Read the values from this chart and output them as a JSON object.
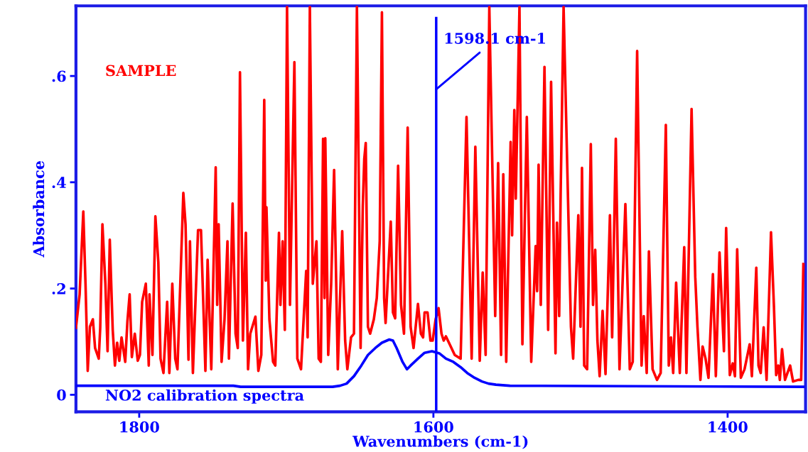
{
  "chart_data": {
    "type": "line",
    "xlabel": "Wavenumbers (cm-1)",
    "ylabel": "Absorbance",
    "xlim": [
      1843,
      1347
    ],
    "ylim": [
      -0.032,
      0.732
    ],
    "xticks": [
      1800,
      1600,
      1400
    ],
    "yticks": [
      {
        "value": 0,
        "label": "0"
      },
      {
        "value": 0.2,
        "label": ".2"
      },
      {
        "value": 0.4,
        "label": ".4"
      },
      {
        "value": 0.6,
        "label": ".6"
      }
    ],
    "grid": false,
    "legend": false,
    "marker": "none",
    "line_style": "solid",
    "ref_lines": [
      {
        "axis": "x",
        "value": 1598.1,
        "label": "1598.1 cm-1",
        "color": "#0000ff",
        "line_style": "solid"
      }
    ],
    "series": [
      {
        "name": "SAMPLE",
        "color": "#ff0000",
        "x": [
          1843,
          1840.5,
          1838,
          1836.5,
          1835,
          1833.5,
          1831.5,
          1830,
          1827.5,
          1826.5,
          1825,
          1823,
          1821.5,
          1820,
          1818,
          1816.5,
          1815,
          1813.5,
          1812,
          1809.5,
          1808,
          1806.5,
          1805,
          1803,
          1801,
          1799.5,
          1798,
          1795.5,
          1793.5,
          1793,
          1791,
          1789,
          1787,
          1785.5,
          1783.5,
          1781,
          1779.5,
          1777.5,
          1775.5,
          1774,
          1772.5,
          1770,
          1768.5,
          1766.5,
          1765.5,
          1763.5,
          1760,
          1758,
          1755,
          1753.5,
          1751,
          1748,
          1747,
          1746,
          1744,
          1742,
          1740,
          1739,
          1736.5,
          1734.5,
          1733,
          1731.5,
          1729.5,
          1727.5,
          1726,
          1724.5,
          1721,
          1719,
          1717,
          1715,
          1714,
          1713.5,
          1711.5,
          1709,
          1707.5,
          1705,
          1704,
          1702.5,
          1701,
          1699.5,
          1697.5,
          1694.5,
          1692.5,
          1690,
          1686.5,
          1685.5,
          1684,
          1682,
          1679.5,
          1678,
          1676.5,
          1675,
          1674,
          1673.5,
          1671.5,
          1669.5,
          1667.5,
          1665,
          1662,
          1660,
          1658.5,
          1656,
          1654,
          1652,
          1649.5,
          1648,
          1647,
          1646,
          1644.5,
          1643,
          1640.5,
          1638.5,
          1636.5,
          1635,
          1633.5,
          1632.5,
          1629,
          1627.5,
          1626,
          1624,
          1622,
          1620,
          1617.5,
          1615.5,
          1613.5,
          1610.5,
          1608.5,
          1607,
          1606,
          1604,
          1602,
          1600.5,
          1598.5,
          1596.5,
          1594.5,
          1593,
          1591.5,
          1585.5,
          1581.5,
          1577.5,
          1574,
          1571.5,
          1568.5,
          1566.5,
          1564.5,
          1562,
          1558,
          1556,
          1554,
          1552.5,
          1550.5,
          1547.5,
          1546.5,
          1545,
          1544,
          1541.5,
          1539.5,
          1536.5,
          1533.5,
          1530.5,
          1529.5,
          1528.5,
          1527,
          1524.5,
          1522,
          1520,
          1517,
          1516,
          1514.5,
          1513.5,
          1511.5,
          1506.5,
          1505,
          1501.5,
          1500,
          1499,
          1497.5,
          1495.5,
          1493,
          1491.5,
          1490,
          1488.5,
          1487,
          1485,
          1483,
          1480,
          1478.5,
          1476,
          1473.5,
          1469.5,
          1466.5,
          1464.5,
          1461.5,
          1458.5,
          1457,
          1455,
          1453.5,
          1451,
          1448,
          1445.5,
          1442,
          1440,
          1438.5,
          1437,
          1435,
          1432.5,
          1429.5,
          1428,
          1424.5,
          1422,
          1420.5,
          1418.5,
          1417,
          1415,
          1413,
          1410,
          1408,
          1405.5,
          1404,
          1402.5,
          1401,
          1398.5,
          1396.5,
          1395,
          1393.5,
          1391,
          1388.5,
          1385,
          1383.5,
          1380.5,
          1379,
          1377.5,
          1375.5,
          1373.5,
          1370.5,
          1368.5,
          1367,
          1365.5,
          1364.5,
          1363,
          1361,
          1357.5,
          1355.5,
          1352,
          1350,
          1348.5
        ],
        "values": [
          0.126,
          0.189,
          0.345,
          0.209,
          0.045,
          0.128,
          0.142,
          0.088,
          0.068,
          0.126,
          0.321,
          0.209,
          0.082,
          0.292,
          0.122,
          0.055,
          0.098,
          0.064,
          0.108,
          0.062,
          0.139,
          0.189,
          0.071,
          0.115,
          0.064,
          0.075,
          0.175,
          0.209,
          0.055,
          0.189,
          0.075,
          0.336,
          0.249,
          0.068,
          0.041,
          0.175,
          0.041,
          0.209,
          0.068,
          0.048,
          0.173,
          0.38,
          0.321,
          0.066,
          0.289,
          0.041,
          0.31,
          0.31,
          0.045,
          0.254,
          0.048,
          0.428,
          0.169,
          0.321,
          0.062,
          0.142,
          0.289,
          0.068,
          0.36,
          0.115,
          0.088,
          0.607,
          0.102,
          0.305,
          0.048,
          0.115,
          0.147,
          0.045,
          0.075,
          0.555,
          0.215,
          0.353,
          0.142,
          0.062,
          0.055,
          0.305,
          0.169,
          0.289,
          0.122,
          0.73,
          0.169,
          0.626,
          0.068,
          0.048,
          0.233,
          0.108,
          0.73,
          0.209,
          0.289,
          0.068,
          0.062,
          0.482,
          0.182,
          0.483,
          0.075,
          0.209,
          0.423,
          0.048,
          0.308,
          0.102,
          0.048,
          0.108,
          0.115,
          0.73,
          0.088,
          0.356,
          0.444,
          0.474,
          0.128,
          0.115,
          0.142,
          0.182,
          0.289,
          0.72,
          0.182,
          0.135,
          0.326,
          0.155,
          0.144,
          0.431,
          0.169,
          0.115,
          0.503,
          0.128,
          0.088,
          0.171,
          0.115,
          0.108,
          0.155,
          0.155,
          0.102,
          0.102,
          0.142,
          0.163,
          0.115,
          0.102,
          0.11,
          0.075,
          0.068,
          0.523,
          0.068,
          0.467,
          0.064,
          0.23,
          0.075,
          0.73,
          0.148,
          0.436,
          0.075,
          0.415,
          0.062,
          0.476,
          0.3,
          0.536,
          0.369,
          0.73,
          0.095,
          0.523,
          0.062,
          0.28,
          0.195,
          0.433,
          0.169,
          0.617,
          0.122,
          0.589,
          0.078,
          0.324,
          0.148,
          0.38,
          0.73,
          0.128,
          0.068,
          0.338,
          0.128,
          0.427,
          0.055,
          0.048,
          0.472,
          0.169,
          0.273,
          0.102,
          0.035,
          0.158,
          0.039,
          0.338,
          0.108,
          0.482,
          0.048,
          0.359,
          0.048,
          0.062,
          0.647,
          0.055,
          0.148,
          0.041,
          0.27,
          0.048,
          0.028,
          0.041,
          0.508,
          0.055,
          0.108,
          0.041,
          0.211,
          0.041,
          0.278,
          0.041,
          0.538,
          0.222,
          0.128,
          0.028,
          0.091,
          0.068,
          0.032,
          0.227,
          0.035,
          0.268,
          0.175,
          0.082,
          0.314,
          0.037,
          0.059,
          0.035,
          0.274,
          0.032,
          0.048,
          0.095,
          0.035,
          0.239,
          0.055,
          0.041,
          0.127,
          0.028,
          0.306,
          0.166,
          0.037,
          0.055,
          0.028,
          0.086,
          0.028,
          0.055,
          0.025,
          0.028,
          0.028,
          0.246
        ]
      },
      {
        "name": "NO2 calibration spectra",
        "color": "#0000ff",
        "x": [
          1843,
          1736,
          1731,
          1668.5,
          1663.5,
          1659,
          1654,
          1649,
          1644.5,
          1639.5,
          1635,
          1630,
          1627.5,
          1625,
          1621,
          1618,
          1615.5,
          1610.5,
          1606,
          1601,
          1596,
          1591.5,
          1586.5,
          1581.5,
          1577,
          1572,
          1567,
          1562.5,
          1557.5,
          1548,
          1348.5
        ],
        "values": [
          0.017,
          0.017,
          0.015,
          0.015,
          0.017,
          0.021,
          0.035,
          0.055,
          0.075,
          0.088,
          0.098,
          0.104,
          0.102,
          0.088,
          0.062,
          0.048,
          0.055,
          0.068,
          0.079,
          0.082,
          0.078,
          0.068,
          0.062,
          0.052,
          0.041,
          0.032,
          0.025,
          0.021,
          0.019,
          0.017,
          0.015
        ]
      }
    ]
  }
}
